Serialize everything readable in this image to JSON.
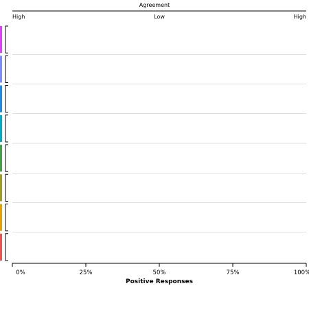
{
  "chart_data": {
    "type": "scatter",
    "top_axis": {
      "title": "Agreement",
      "tick_labels": [
        "High",
        "Low",
        "High"
      ]
    },
    "x_axis": {
      "title": "Positive Responses",
      "tick_labels": [
        "0%",
        "25%",
        "50%",
        "75%",
        "100%"
      ],
      "range": [
        0,
        100
      ]
    },
    "bands": [
      "#e040fb",
      "#7b8cff",
      "#1e88e5",
      "#00acc1",
      "#43a047",
      "#9e9d24",
      "#e6a000",
      "#ef5350"
    ]
  }
}
